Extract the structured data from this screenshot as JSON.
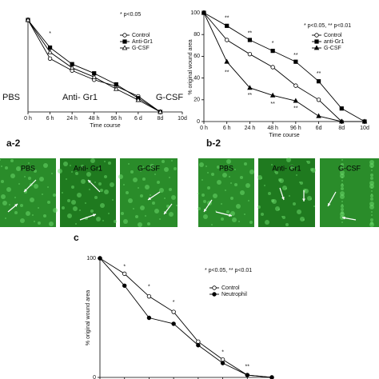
{
  "chart_data": [
    {
      "type": "line",
      "xlabel": "Time course",
      "stat_note": "* p<0.05",
      "categories": [
        "0 h",
        "6 h",
        "24 h",
        "48 h",
        "96 h",
        "6 d",
        "8d",
        "10d"
      ],
      "ylim": [
        0,
        100
      ],
      "series": [
        {
          "name": "Control",
          "color": "#000000",
          "marker": "circle-open",
          "values": [
            100,
            58,
            45,
            35,
            28,
            17,
            0,
            null
          ]
        },
        {
          "name": "Anti-Gr1",
          "color": "#000000",
          "marker": "square",
          "values": [
            100,
            70,
            52,
            42,
            30,
            15,
            0,
            null
          ]
        },
        {
          "name": "G-CSF",
          "color": "#000000",
          "marker": "triangle-open",
          "values": [
            100,
            65,
            48,
            38,
            25,
            13,
            0,
            null
          ]
        }
      ],
      "annotations": [
        {
          "text": "*",
          "x": 1,
          "y": 85
        }
      ],
      "overlay_labels": [
        "PBS",
        "Anti- Gr1",
        "G-CSF"
      ]
    },
    {
      "type": "line",
      "xlabel": "Time course",
      "ylabel": "% original wound area",
      "stat_note": "* p<0.05, ** p<0.01",
      "categories": [
        "0 h",
        "6 h",
        "24 h",
        "48 h",
        "96 h",
        "6d",
        "8d",
        "10d"
      ],
      "ylim": [
        0,
        100
      ],
      "yticks": [
        0,
        20,
        40,
        60,
        80,
        100
      ],
      "series": [
        {
          "name": "Control",
          "color": "#000000",
          "marker": "circle-open",
          "values": [
            100,
            75,
            62,
            50,
            33,
            20,
            0,
            0
          ]
        },
        {
          "name": "anti-Gr1",
          "color": "#000000",
          "marker": "square",
          "values": [
            100,
            88,
            75,
            65,
            55,
            37,
            12,
            0
          ]
        },
        {
          "name": "G-CSF",
          "color": "#000000",
          "marker": "triangle",
          "values": [
            100,
            55,
            31,
            24,
            19,
            5,
            0,
            0
          ]
        }
      ],
      "annotations": [
        {
          "text": "**",
          "x": 1,
          "y": 95
        },
        {
          "text": "**",
          "x": 2,
          "y": 81
        },
        {
          "text": "*",
          "x": 3,
          "y": 72
        },
        {
          "text": "**",
          "x": 4,
          "y": 61
        },
        {
          "text": "**",
          "x": 5,
          "y": 44
        },
        {
          "text": "**",
          "x": 1,
          "y": 45
        },
        {
          "text": "**",
          "x": 2,
          "y": 24
        },
        {
          "text": "**",
          "x": 3,
          "y": 16
        },
        {
          "text": "**",
          "x": 4,
          "y": 12
        }
      ]
    },
    {
      "type": "line",
      "ylabel": "% original wound area",
      "stat_note": "* p<0.05, ** p<0.01",
      "categories": [
        null,
        null,
        null,
        null,
        null,
        null,
        null,
        null
      ],
      "ylim": [
        0,
        100
      ],
      "yticks": [
        0,
        100
      ],
      "series": [
        {
          "name": "Control",
          "color": "#000000",
          "marker": "circle-open",
          "values": [
            100,
            87,
            68,
            55,
            30,
            15,
            2,
            0
          ]
        },
        {
          "name": "Neutrophil",
          "color": "#000000",
          "marker": "circle",
          "values": [
            100,
            77,
            50,
            45,
            27,
            12,
            2,
            0
          ]
        }
      ],
      "annotations": [
        {
          "text": "*",
          "x": 1,
          "y": 93
        },
        {
          "text": "*",
          "x": 2,
          "y": 76
        },
        {
          "text": "*",
          "x": 3,
          "y": 63
        },
        {
          "text": "*",
          "x": 5,
          "y": 21
        },
        {
          "text": "**",
          "x": 6,
          "y": 9
        }
      ]
    }
  ],
  "figure": {
    "panel_labels": [
      "a-2",
      "b-2",
      "c"
    ],
    "image_labels": [
      [
        "PBS",
        "Anti- Gr1",
        "G-CSF"
      ],
      [
        "PBS",
        "Anti- Gr1",
        "G-CSF"
      ]
    ]
  }
}
